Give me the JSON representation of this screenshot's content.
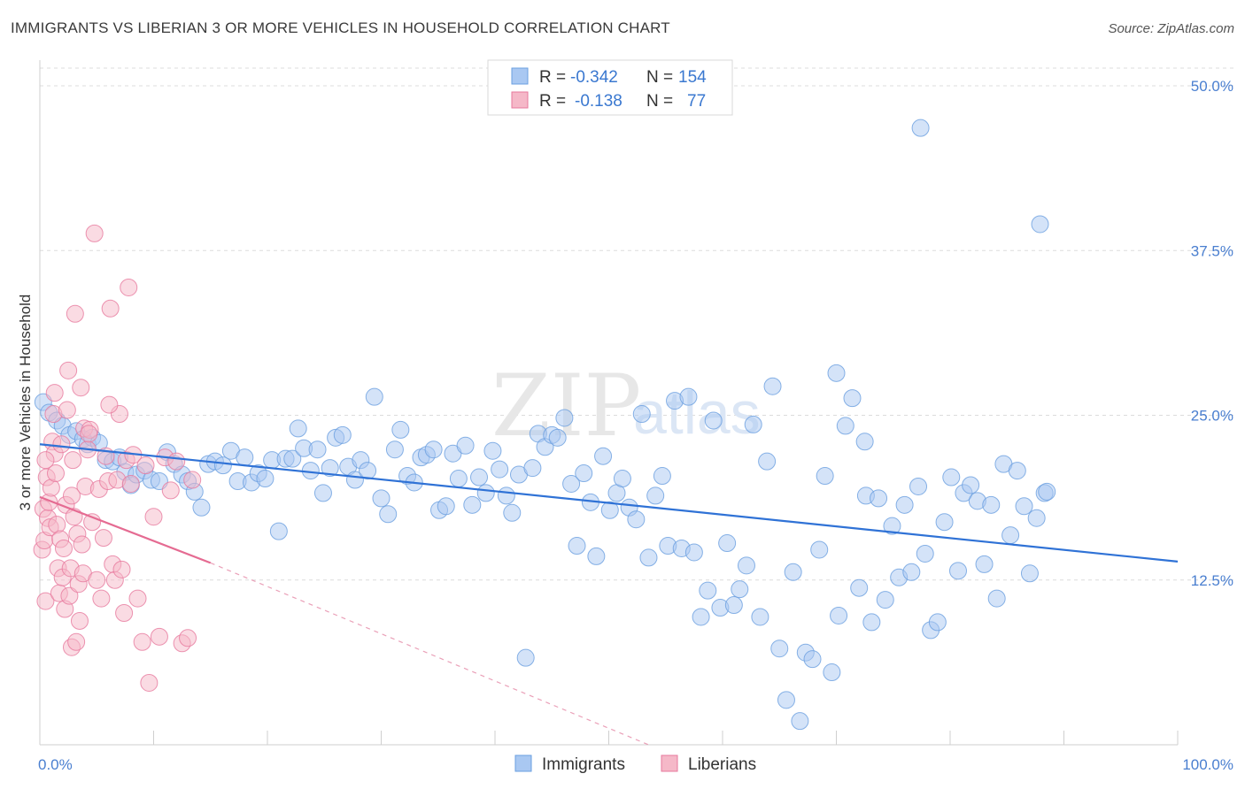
{
  "header": {
    "title": "IMMIGRANTS VS LIBERIAN 3 OR MORE VEHICLES IN HOUSEHOLD CORRELATION CHART",
    "source": "Source: ZipAtlas.com"
  },
  "watermark": {
    "part1": "ZIP",
    "part2": "atlas"
  },
  "legend": {
    "rows": [
      {
        "r_label": "R =",
        "r_value": "-0.342",
        "n_label": "N =",
        "n_value": "154",
        "color": "#a9c8f2"
      },
      {
        "r_label": "R =",
        "r_value": "-0.138",
        "n_label": "N =",
        "n_value": "77",
        "color": "#f5b8c8"
      }
    ]
  },
  "bottom_legend": [
    {
      "label": "Immigrants",
      "color": "#a9c8f2"
    },
    {
      "label": "Liberians",
      "color": "#f5b8c8"
    }
  ],
  "chart_data": {
    "type": "scatter",
    "title": "IMMIGRANTS VS LIBERIAN 3 OR MORE VEHICLES IN HOUSEHOLD CORRELATION CHART",
    "xlabel": "",
    "ylabel": "3 or more Vehicles in Household",
    "xlim": [
      0,
      100
    ],
    "ylim": [
      0,
      50
    ],
    "x_tick_labels": [
      "0.0%",
      "100.0%"
    ],
    "y_ticks": [
      12.5,
      25.0,
      37.5,
      50.0
    ],
    "y_tick_labels": [
      "12.5%",
      "25.0%",
      "37.5%",
      "50.0%"
    ],
    "grid": true,
    "series": [
      {
        "name": "Immigrants",
        "color": "#6a9fe0",
        "fill": "#a9c8f2",
        "trend": {
          "x0": 0,
          "y0": 22.8,
          "x1": 100,
          "y1": 13.9
        },
        "points": [
          [
            0.3,
            26.0
          ],
          [
            0.8,
            25.2
          ],
          [
            1.5,
            24.6
          ],
          [
            2.0,
            24.2
          ],
          [
            2.6,
            23.5
          ],
          [
            3.2,
            23.8
          ],
          [
            3.8,
            23.2
          ],
          [
            4.2,
            22.8
          ],
          [
            4.6,
            23.3
          ],
          [
            5.2,
            22.9
          ],
          [
            5.8,
            21.6
          ],
          [
            6.4,
            21.5
          ],
          [
            7.0,
            21.8
          ],
          [
            7.5,
            20.7
          ],
          [
            8.0,
            19.7
          ],
          [
            8.5,
            20.5
          ],
          [
            9.2,
            20.8
          ],
          [
            9.8,
            20.1
          ],
          [
            10.5,
            20.0
          ],
          [
            11.2,
            22.2
          ],
          [
            11.8,
            21.3
          ],
          [
            12.5,
            20.5
          ],
          [
            13.0,
            20.0
          ],
          [
            13.6,
            19.2
          ],
          [
            14.2,
            18.0
          ],
          [
            14.8,
            21.3
          ],
          [
            15.4,
            21.5
          ],
          [
            16.1,
            21.2
          ],
          [
            16.8,
            22.3
          ],
          [
            17.4,
            20.0
          ],
          [
            18.0,
            21.8
          ],
          [
            18.6,
            19.9
          ],
          [
            19.2,
            20.6
          ],
          [
            19.8,
            20.2
          ],
          [
            20.4,
            21.6
          ],
          [
            21.0,
            16.2
          ],
          [
            21.6,
            21.7
          ],
          [
            22.2,
            21.7
          ],
          [
            22.7,
            24.0
          ],
          [
            23.2,
            22.5
          ],
          [
            23.8,
            20.8
          ],
          [
            24.4,
            22.4
          ],
          [
            24.9,
            19.1
          ],
          [
            25.5,
            21.0
          ],
          [
            26.0,
            23.3
          ],
          [
            26.6,
            23.5
          ],
          [
            27.1,
            21.1
          ],
          [
            27.7,
            20.1
          ],
          [
            28.2,
            21.6
          ],
          [
            28.8,
            20.8
          ],
          [
            29.4,
            26.4
          ],
          [
            30.0,
            18.7
          ],
          [
            30.6,
            17.5
          ],
          [
            31.2,
            22.4
          ],
          [
            31.7,
            23.9
          ],
          [
            32.3,
            20.4
          ],
          [
            32.9,
            19.9
          ],
          [
            33.5,
            21.8
          ],
          [
            34.0,
            22.0
          ],
          [
            34.6,
            22.4
          ],
          [
            35.1,
            17.8
          ],
          [
            35.7,
            18.1
          ],
          [
            36.3,
            22.1
          ],
          [
            36.8,
            20.2
          ],
          [
            37.4,
            22.7
          ],
          [
            38.0,
            18.2
          ],
          [
            38.6,
            20.3
          ],
          [
            39.2,
            19.1
          ],
          [
            39.8,
            22.3
          ],
          [
            40.4,
            20.9
          ],
          [
            41.0,
            18.9
          ],
          [
            41.5,
            17.6
          ],
          [
            42.1,
            20.5
          ],
          [
            42.7,
            6.6
          ],
          [
            43.3,
            21.0
          ],
          [
            43.8,
            23.6
          ],
          [
            44.4,
            22.6
          ],
          [
            45.0,
            23.5
          ],
          [
            45.5,
            23.3
          ],
          [
            46.1,
            24.8
          ],
          [
            46.7,
            19.8
          ],
          [
            47.2,
            15.1
          ],
          [
            47.8,
            20.6
          ],
          [
            48.4,
            18.4
          ],
          [
            48.9,
            14.3
          ],
          [
            49.5,
            21.9
          ],
          [
            50.1,
            17.8
          ],
          [
            50.7,
            19.1
          ],
          [
            51.2,
            20.2
          ],
          [
            51.8,
            18.0
          ],
          [
            52.4,
            17.1
          ],
          [
            52.9,
            25.1
          ],
          [
            53.5,
            14.2
          ],
          [
            54.1,
            18.9
          ],
          [
            54.7,
            20.4
          ],
          [
            55.2,
            15.1
          ],
          [
            55.8,
            26.1
          ],
          [
            56.4,
            14.9
          ],
          [
            57.0,
            26.4
          ],
          [
            57.5,
            14.6
          ],
          [
            58.1,
            9.7
          ],
          [
            58.7,
            11.7
          ],
          [
            59.2,
            24.6
          ],
          [
            59.8,
            10.4
          ],
          [
            60.4,
            15.3
          ],
          [
            61.0,
            10.6
          ],
          [
            61.5,
            11.8
          ],
          [
            62.1,
            13.6
          ],
          [
            62.7,
            24.3
          ],
          [
            63.3,
            9.7
          ],
          [
            63.9,
            21.5
          ],
          [
            64.4,
            27.2
          ],
          [
            65.0,
            7.3
          ],
          [
            65.6,
            3.4
          ],
          [
            66.2,
            13.1
          ],
          [
            66.8,
            1.8
          ],
          [
            67.3,
            7.0
          ],
          [
            67.9,
            6.5
          ],
          [
            68.5,
            14.8
          ],
          [
            69.0,
            20.4
          ],
          [
            69.6,
            5.5
          ],
          [
            70.2,
            9.8
          ],
          [
            70.8,
            24.2
          ],
          [
            71.4,
            26.3
          ],
          [
            72.0,
            11.9
          ],
          [
            72.6,
            18.9
          ],
          [
            73.1,
            9.3
          ],
          [
            73.7,
            18.7
          ],
          [
            74.3,
            11.0
          ],
          [
            74.9,
            16.6
          ],
          [
            75.5,
            12.7
          ],
          [
            76.0,
            18.2
          ],
          [
            76.6,
            13.1
          ],
          [
            77.2,
            19.6
          ],
          [
            77.8,
            14.5
          ],
          [
            78.3,
            8.7
          ],
          [
            78.9,
            9.3
          ],
          [
            79.5,
            16.9
          ],
          [
            80.1,
            20.3
          ],
          [
            80.7,
            13.2
          ],
          [
            81.2,
            19.1
          ],
          [
            81.8,
            19.7
          ],
          [
            82.4,
            18.5
          ],
          [
            83.0,
            13.7
          ],
          [
            83.6,
            18.2
          ],
          [
            84.1,
            11.1
          ],
          [
            84.7,
            21.3
          ],
          [
            85.3,
            15.9
          ],
          [
            85.9,
            20.8
          ],
          [
            86.5,
            18.1
          ],
          [
            87.0,
            13.0
          ],
          [
            87.6,
            17.2
          ],
          [
            88.3,
            19.1
          ],
          [
            77.4,
            46.8
          ],
          [
            87.9,
            39.5
          ],
          [
            88.5,
            19.2
          ],
          [
            70.0,
            28.2
          ],
          [
            72.5,
            23.0
          ]
        ]
      },
      {
        "name": "Liberians",
        "color": "#e7799d",
        "fill": "#f5b8c8",
        "trend": {
          "x0": 0,
          "y0": 18.8,
          "x1": 15,
          "y1": 13.8
        },
        "trend_dashed": {
          "x0": 15,
          "y0": 13.8,
          "x1": 53.5,
          "y1": 0
        },
        "points": [
          [
            0.2,
            14.8
          ],
          [
            0.3,
            17.9
          ],
          [
            0.4,
            15.5
          ],
          [
            0.5,
            10.9
          ],
          [
            0.6,
            20.3
          ],
          [
            0.7,
            17.2
          ],
          [
            0.8,
            18.4
          ],
          [
            0.9,
            16.5
          ],
          [
            1.0,
            19.5
          ],
          [
            1.1,
            23.0
          ],
          [
            1.2,
            25.1
          ],
          [
            1.3,
            22.1
          ],
          [
            1.4,
            20.6
          ],
          [
            1.5,
            16.7
          ],
          [
            1.6,
            13.4
          ],
          [
            1.7,
            11.5
          ],
          [
            1.8,
            15.6
          ],
          [
            1.9,
            22.8
          ],
          [
            2.0,
            12.7
          ],
          [
            2.1,
            14.9
          ],
          [
            2.2,
            10.3
          ],
          [
            2.3,
            18.2
          ],
          [
            2.4,
            25.4
          ],
          [
            2.5,
            28.4
          ],
          [
            2.6,
            11.3
          ],
          [
            2.7,
            13.4
          ],
          [
            2.8,
            7.4
          ],
          [
            2.9,
            21.6
          ],
          [
            3.0,
            17.3
          ],
          [
            3.1,
            32.7
          ],
          [
            3.2,
            7.8
          ],
          [
            3.3,
            16.0
          ],
          [
            3.4,
            12.2
          ],
          [
            3.5,
            9.4
          ],
          [
            3.6,
            27.1
          ],
          [
            3.7,
            15.2
          ],
          [
            3.8,
            13.0
          ],
          [
            3.9,
            24.0
          ],
          [
            4.0,
            19.6
          ],
          [
            4.2,
            22.4
          ],
          [
            4.4,
            23.9
          ],
          [
            4.6,
            16.9
          ],
          [
            4.8,
            38.8
          ],
          [
            5.0,
            12.5
          ],
          [
            5.2,
            19.4
          ],
          [
            5.4,
            11.1
          ],
          [
            5.6,
            15.7
          ],
          [
            5.8,
            21.9
          ],
          [
            6.0,
            20.0
          ],
          [
            6.2,
            33.1
          ],
          [
            6.4,
            13.7
          ],
          [
            6.6,
            12.5
          ],
          [
            6.8,
            20.1
          ],
          [
            7.0,
            25.1
          ],
          [
            7.2,
            13.3
          ],
          [
            7.4,
            10.0
          ],
          [
            7.6,
            21.6
          ],
          [
            7.8,
            34.7
          ],
          [
            8.0,
            19.8
          ],
          [
            8.2,
            22.0
          ],
          [
            8.6,
            11.1
          ],
          [
            9.0,
            7.8
          ],
          [
            9.3,
            21.2
          ],
          [
            9.6,
            4.7
          ],
          [
            10.0,
            17.3
          ],
          [
            10.5,
            8.2
          ],
          [
            11.0,
            21.8
          ],
          [
            11.5,
            19.3
          ],
          [
            12.0,
            21.5
          ],
          [
            12.5,
            7.7
          ],
          [
            13.0,
            8.1
          ],
          [
            13.4,
            20.1
          ],
          [
            0.5,
            21.6
          ],
          [
            1.3,
            26.7
          ],
          [
            2.8,
            18.9
          ],
          [
            4.3,
            23.6
          ],
          [
            6.1,
            25.8
          ]
        ]
      }
    ]
  }
}
